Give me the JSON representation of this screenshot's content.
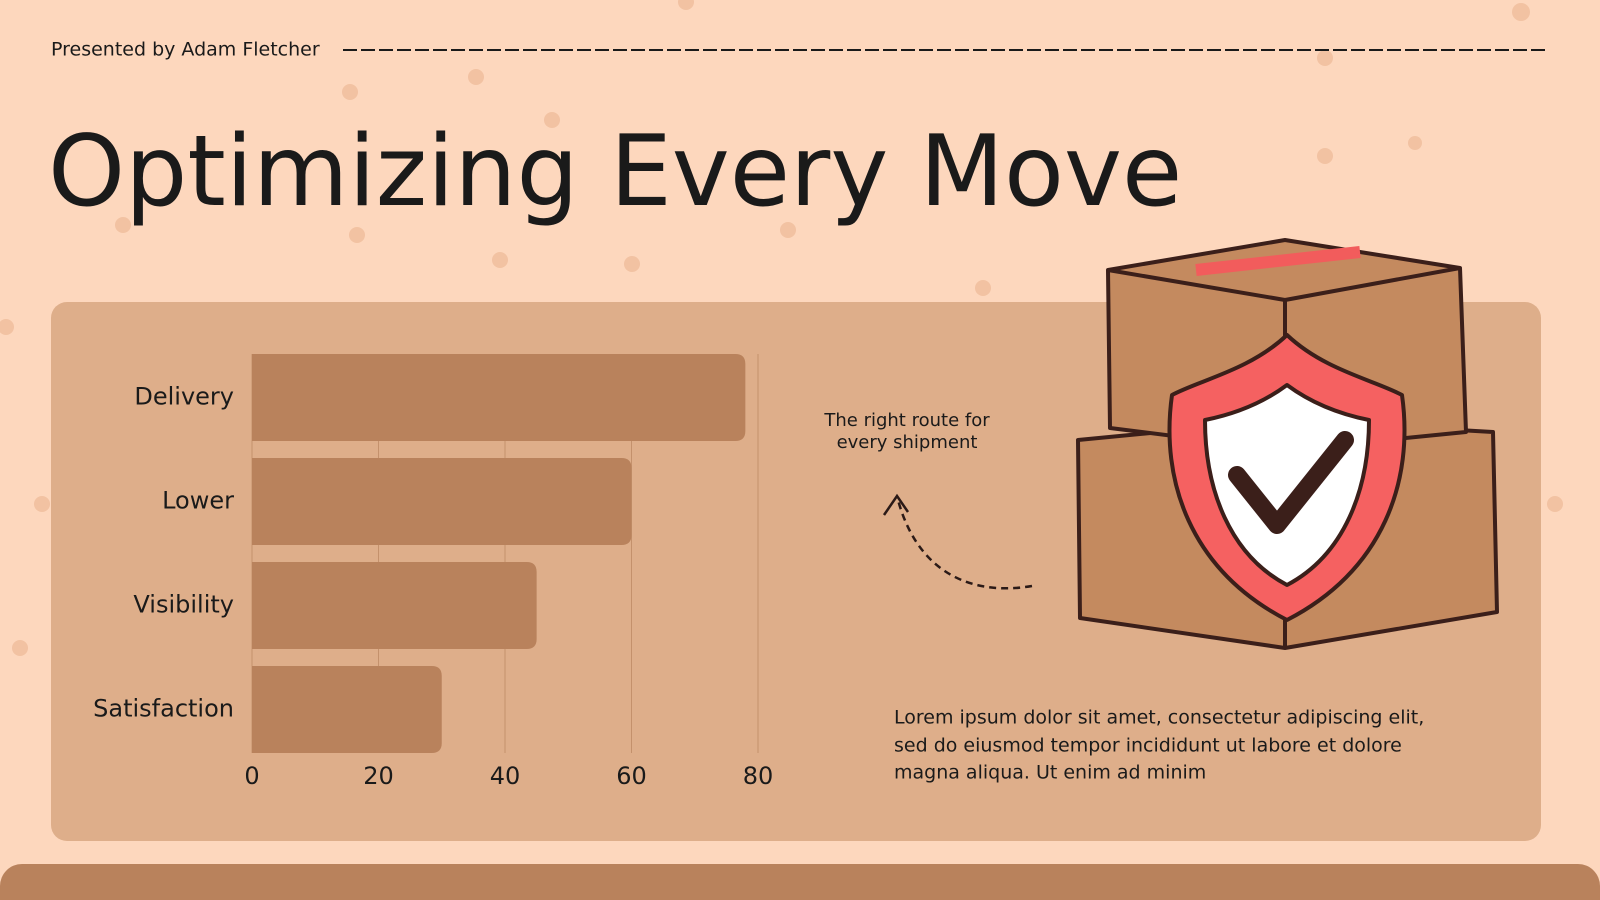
{
  "presenter": "Presented by Adam Fletcher",
  "title": "Optimizing Every Move",
  "note": [
    "The right route for",
    "every shipment"
  ],
  "body": [
    "Lorem ipsum dolor sit amet, consectetur adipiscing elit,",
    "sed do eiusmod tempor incididunt ut labore et dolore",
    "magna aliqua. Ut enim ad minim"
  ],
  "chart_data": {
    "type": "bar",
    "orientation": "horizontal",
    "categories": [
      "Delivery",
      "Lower",
      "Visibility",
      "Satisfaction"
    ],
    "values": [
      78,
      60,
      45,
      30
    ],
    "color": "#b9825c",
    "xlim": [
      0,
      80
    ],
    "xticks": [
      0,
      20,
      40,
      60,
      80
    ],
    "grid": true
  }
}
